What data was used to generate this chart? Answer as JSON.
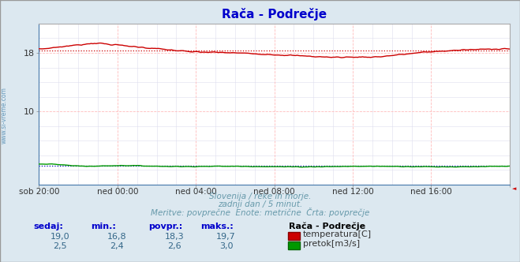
{
  "title": "Rača - Podrečje",
  "title_color": "#0000cc",
  "bg_color": "#dce8f0",
  "plot_bg_color": "#ffffff",
  "grid_color": "#ffbbbb",
  "grid_color_minor": "#ddddee",
  "x_labels": [
    "sob 20:00",
    "ned 00:00",
    "ned 04:00",
    "ned 08:00",
    "ned 12:00",
    "ned 16:00"
  ],
  "ylim": [
    0,
    22
  ],
  "yticks": [
    10,
    18
  ],
  "temp_avg": 18.3,
  "flow_avg": 2.6,
  "watermark": "www.si-vreme.com",
  "footer_line1": "Slovenija / reke in morje.",
  "footer_line2": "zadnji dan / 5 minut.",
  "footer_line3": "Meritve: povprečne  Enote: metrične  Črta: povprečje",
  "footer_color": "#6699aa",
  "table_headers": [
    "sedaj:",
    "min.:",
    "povpr.:",
    "maks.:"
  ],
  "table_header_color": "#0000cc",
  "table_col_sedaj": [
    "19,0",
    "2,5"
  ],
  "table_col_min": [
    "16,8",
    "2,4"
  ],
  "table_col_povpr": [
    "18,3",
    "2,6"
  ],
  "table_col_maks": [
    "19,7",
    "3,0"
  ],
  "table_color": "#336688",
  "legend_title": "Rača - Podrečje",
  "legend_items": [
    "temperatura[C]",
    "pretok[m3/s]"
  ],
  "legend_colors": [
    "#cc0000",
    "#00aa00"
  ],
  "temp_line_color": "#cc0000",
  "flow_line_color": "#009900",
  "flow_avg_line_color": "#0000bb",
  "border_color": "#888888",
  "spine_color": "#4477aa"
}
